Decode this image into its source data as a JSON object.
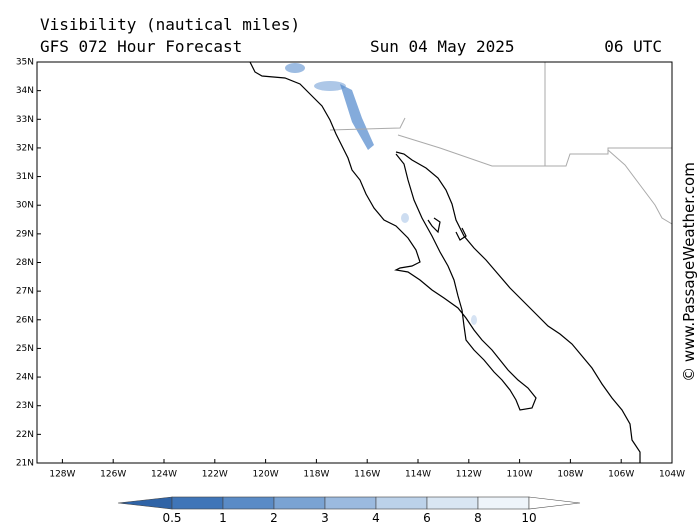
{
  "header": {
    "title": "Visibility (nautical miles)",
    "model": "GFS 072 Hour Forecast",
    "date": "Sun 04 May 2025",
    "time": "06 UTC"
  },
  "watermark": "© www.PassageWeather.com",
  "map": {
    "lat_labels": [
      "35N",
      "34N",
      "33N",
      "32N",
      "31N",
      "30N",
      "29N",
      "28N",
      "27N",
      "26N",
      "25N",
      "24N",
      "23N",
      "22N",
      "21N"
    ],
    "lon_labels": [
      "128W",
      "126W",
      "124W",
      "122W",
      "120W",
      "118W",
      "116W",
      "114W",
      "112W",
      "110W",
      "108W",
      "106W",
      "104W"
    ]
  },
  "colorbar": {
    "ticks": [
      0.5,
      1,
      2,
      3,
      4,
      6,
      8,
      10
    ]
  }
}
